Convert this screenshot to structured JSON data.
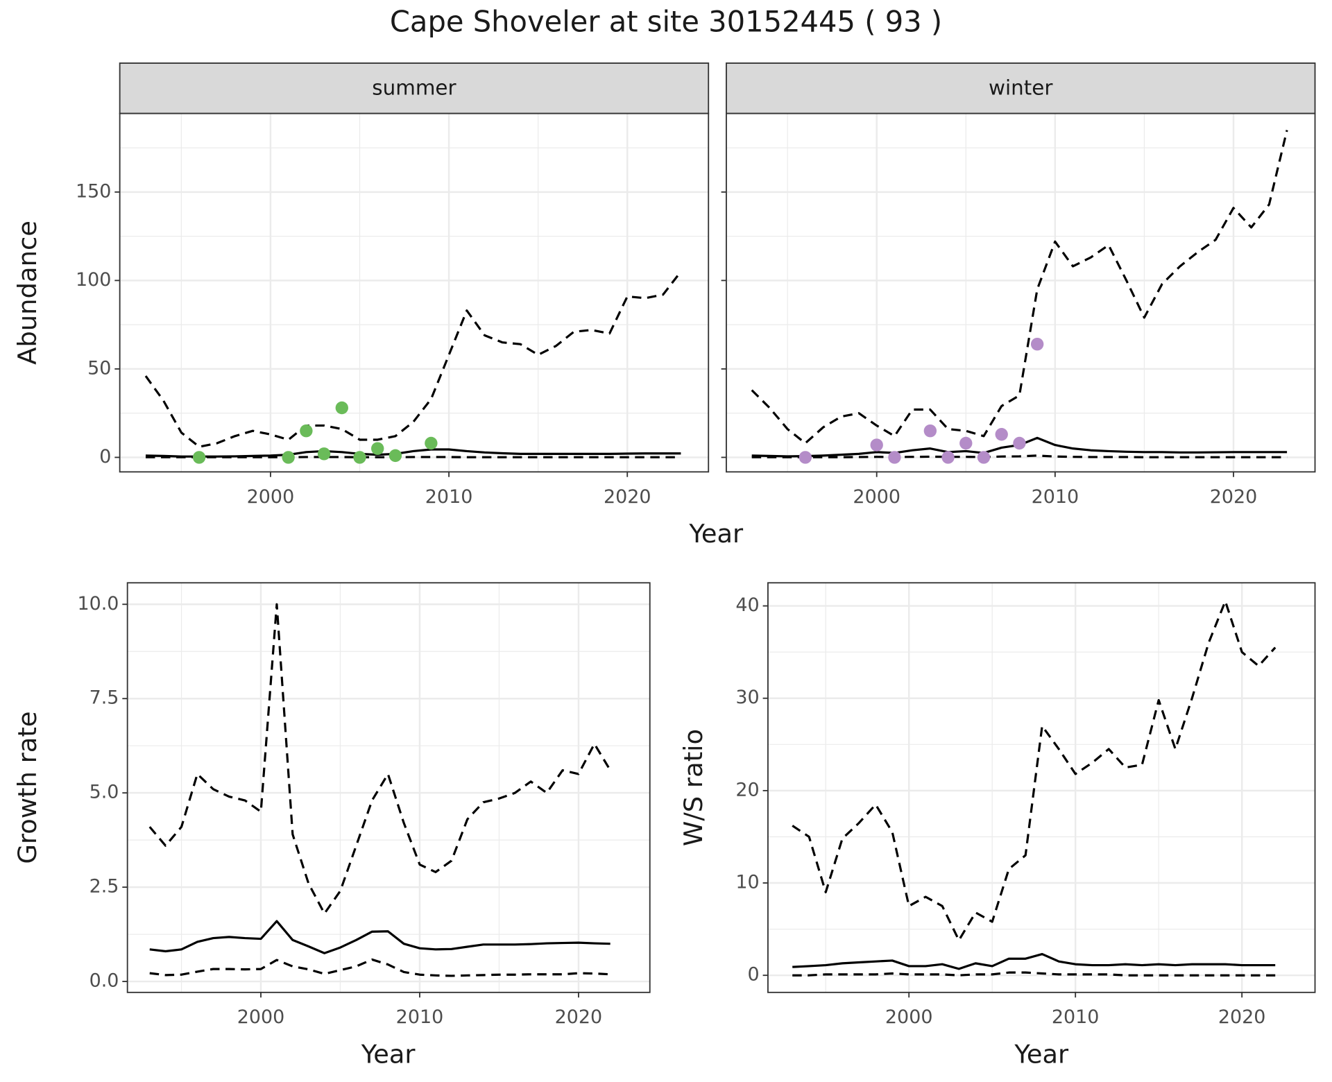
{
  "title": "Cape Shoveler at site 30152445 ( 93 )",
  "chart_data": [
    {
      "type": "line",
      "strip": "summer",
      "xlabel": "Year",
      "ylabel": "Abundance",
      "x": [
        1993,
        1994,
        1995,
        1996,
        1997,
        1998,
        1999,
        2000,
        2001,
        2002,
        2003,
        2004,
        2005,
        2006,
        2007,
        2008,
        2009,
        2010,
        2011,
        2012,
        2013,
        2014,
        2015,
        2016,
        2017,
        2018,
        2019,
        2020,
        2021,
        2022,
        2023
      ],
      "series": [
        {
          "color": "#000000",
          "dash": true,
          "values": [
            46,
            32,
            14,
            6,
            8,
            12,
            15,
            13,
            10,
            18,
            18,
            16,
            10,
            10,
            12,
            20,
            33,
            58,
            83,
            69,
            65,
            64,
            58,
            63,
            71,
            72,
            70,
            91,
            90,
            92,
            105
          ]
        },
        {
          "color": "#000000",
          "dash": false,
          "values": [
            1,
            0.8,
            0.5,
            0.5,
            0.5,
            0.6,
            0.8,
            1,
            1.5,
            3,
            3.5,
            3,
            2,
            1.5,
            2,
            3.5,
            4.5,
            4.5,
            3.5,
            2.8,
            2.3,
            2,
            2,
            2,
            2,
            2,
            2,
            2.1,
            2.2,
            2.2,
            2.2
          ]
        },
        {
          "color": "#000000",
          "dash": true,
          "values": [
            0.1,
            0.1,
            0.1,
            0.1,
            0.1,
            0.1,
            0.1,
            0.1,
            0.1,
            0.2,
            0.2,
            0.2,
            0.1,
            0.1,
            0.1,
            0.2,
            0.2,
            0.2,
            0.1,
            0.1,
            0.1,
            0.1,
            0.1,
            0.1,
            0.1,
            0.1,
            0.1,
            0.1,
            0.1,
            0.1,
            0.1
          ]
        }
      ],
      "points": {
        "color": "#6abb59",
        "x": [
          1996,
          2001,
          2002,
          2003,
          2004,
          2005,
          2006,
          2007,
          2009
        ],
        "values": [
          0,
          0,
          15,
          2,
          28,
          0,
          5,
          1,
          8
        ]
      },
      "xlim": [
        1991.55,
        2024.55
      ],
      "ylim": [
        -8.2,
        194.4
      ],
      "xticks": [
        2000,
        2010,
        2020
      ],
      "yticks": [
        0,
        50,
        100,
        150
      ],
      "minor_xticks": [
        1995,
        2005,
        2015
      ],
      "minor_yticks": [
        25,
        75,
        125,
        175
      ]
    },
    {
      "type": "line",
      "strip": "winter",
      "x": [
        1993,
        1994,
        1995,
        1996,
        1997,
        1998,
        1999,
        2000,
        2001,
        2002,
        2003,
        2004,
        2005,
        2006,
        2007,
        2008,
        2009,
        2010,
        2011,
        2012,
        2013,
        2014,
        2015,
        2016,
        2017,
        2018,
        2019,
        2020,
        2021,
        2022,
        2023
      ],
      "series": [
        {
          "color": "#000000",
          "dash": true,
          "values": [
            38,
            28,
            16,
            8,
            17,
            23,
            25,
            18,
            12,
            27,
            27,
            16,
            15,
            12,
            29,
            35,
            95,
            122,
            108,
            113,
            120,
            100,
            79,
            98,
            108,
            116,
            123,
            141,
            130,
            143,
            185
          ]
        },
        {
          "color": "#000000",
          "dash": false,
          "values": [
            1,
            0.8,
            0.6,
            0.7,
            1,
            1.5,
            2,
            3,
            2.5,
            4,
            5,
            3,
            3.5,
            2.5,
            5.5,
            7,
            11,
            7,
            5,
            4,
            3.5,
            3.2,
            3,
            3,
            2.8,
            2.8,
            2.9,
            3,
            3,
            3,
            3
          ]
        },
        {
          "color": "#000000",
          "dash": true,
          "values": [
            0.1,
            0.1,
            0.1,
            0.1,
            0.1,
            0.1,
            0.2,
            0.3,
            0.2,
            0.3,
            0.4,
            0.3,
            0.3,
            0.2,
            0.5,
            0.6,
            1,
            0.5,
            0.3,
            0.2,
            0.2,
            0.2,
            0.1,
            0.1,
            0.1,
            0.1,
            0.1,
            0.1,
            0.1,
            0.1,
            0.1
          ]
        }
      ],
      "points": {
        "color": "#b48cc8",
        "x": [
          1996,
          2000,
          2001,
          2003,
          2004,
          2005,
          2006,
          2007,
          2008,
          2009
        ],
        "values": [
          0,
          7,
          0,
          15,
          0,
          8,
          0,
          13,
          8,
          64
        ]
      },
      "xlim": [
        1991.57,
        2024.57
      ],
      "ylim": [
        -8.2,
        194.4
      ],
      "xticks": [
        2000,
        2010,
        2020
      ],
      "yticks": [
        0,
        50,
        100,
        150
      ],
      "minor_xticks": [
        1995,
        2005,
        2015
      ],
      "minor_yticks": [
        25,
        75,
        125,
        175
      ]
    },
    {
      "type": "line",
      "xlabel": "Year",
      "ylabel": "Growth rate",
      "x": [
        1993,
        1994,
        1995,
        1996,
        1997,
        1998,
        1999,
        2000,
        2001,
        2002,
        2003,
        2004,
        2005,
        2006,
        2007,
        2008,
        2009,
        2010,
        2011,
        2012,
        2013,
        2014,
        2015,
        2016,
        2017,
        2018,
        2019,
        2020,
        2021,
        2022
      ],
      "series": [
        {
          "color": "#000000",
          "dash": true,
          "values": [
            4.1,
            3.6,
            4.1,
            5.5,
            5.1,
            4.9,
            4.8,
            4.5,
            10,
            3.9,
            2.6,
            1.8,
            2.4,
            3.6,
            4.8,
            5.5,
            4.2,
            3.1,
            2.9,
            3.2,
            4.3,
            4.75,
            4.85,
            5,
            5.3,
            5,
            5.6,
            5.5,
            6.3,
            5.6
          ]
        },
        {
          "color": "#000000",
          "dash": false,
          "values": [
            0.85,
            0.8,
            0.85,
            1.05,
            1.15,
            1.18,
            1.15,
            1.13,
            1.6,
            1.1,
            0.93,
            0.75,
            0.9,
            1.1,
            1.32,
            1.33,
            1,
            0.88,
            0.85,
            0.86,
            0.92,
            0.98,
            0.98,
            0.98,
            0.99,
            1.01,
            1.02,
            1.03,
            1.01,
            1
          ]
        },
        {
          "color": "#000000",
          "dash": true,
          "values": [
            0.22,
            0.17,
            0.18,
            0.26,
            0.33,
            0.33,
            0.32,
            0.33,
            0.57,
            0.4,
            0.32,
            0.2,
            0.3,
            0.4,
            0.58,
            0.45,
            0.25,
            0.18,
            0.16,
            0.15,
            0.16,
            0.17,
            0.18,
            0.18,
            0.19,
            0.19,
            0.19,
            0.22,
            0.21,
            0.19
          ]
        }
      ],
      "xlim": [
        1991.6,
        2024.49
      ],
      "ylim": [
        -0.29,
        10.57
      ],
      "xticks": [
        2000,
        2010,
        2020
      ],
      "yticks": [
        {
          "value": 0,
          "label": "0.0"
        },
        2.5,
        {
          "value": 5,
          "label": "5.0"
        },
        7.5,
        {
          "value": 10,
          "label": "10.0"
        }
      ],
      "minor_xticks": [
        1995,
        2005,
        2015
      ],
      "minor_yticks": [
        1.25,
        3.75,
        6.25,
        8.75
      ]
    },
    {
      "type": "line",
      "xlabel": "Year",
      "ylabel": "W/S ratio",
      "x": [
        1993,
        1994,
        1995,
        1996,
        1997,
        1998,
        1999,
        2000,
        2001,
        2002,
        2003,
        2004,
        2005,
        2006,
        2007,
        2008,
        2009,
        2010,
        2011,
        2012,
        2013,
        2014,
        2015,
        2016,
        2017,
        2018,
        2019,
        2020,
        2021,
        2022
      ],
      "series": [
        {
          "color": "#000000",
          "dash": true,
          "values": [
            16.2,
            15,
            9,
            14.8,
            16.5,
            18.5,
            15.5,
            7.5,
            8.5,
            7.5,
            3.8,
            6.8,
            5.8,
            11.5,
            13,
            27,
            24.5,
            21.8,
            23,
            24.5,
            22.5,
            22.8,
            29.8,
            24.5,
            30,
            36,
            40.5,
            35,
            33.5,
            35.5
          ]
        },
        {
          "color": "#000000",
          "dash": false,
          "values": [
            0.9,
            1,
            1.1,
            1.3,
            1.4,
            1.5,
            1.6,
            1,
            1,
            1.2,
            0.7,
            1.3,
            1,
            1.8,
            1.8,
            2.3,
            1.5,
            1.2,
            1.1,
            1.1,
            1.2,
            1.1,
            1.2,
            1.1,
            1.2,
            1.2,
            1.2,
            1.1,
            1.1,
            1.1
          ]
        },
        {
          "color": "#000000",
          "dash": true,
          "values": [
            0,
            0,
            0.1,
            0.1,
            0.1,
            0.1,
            0.2,
            0.1,
            0.1,
            0.1,
            0,
            0.1,
            0.1,
            0.3,
            0.3,
            0.2,
            0.1,
            0.1,
            0.1,
            0.1,
            0,
            0,
            0,
            0,
            0,
            0,
            0,
            0,
            0,
            0
          ]
        }
      ],
      "xlim": [
        1991.53,
        2024.39
      ],
      "ylim": [
        -1.85,
        42.5
      ],
      "xticks": [
        2000,
        2010,
        2020
      ],
      "yticks": [
        0,
        10,
        20,
        30,
        40
      ],
      "minor_xticks": [
        1995,
        2005,
        2015
      ],
      "minor_yticks": [
        5,
        15,
        25,
        35
      ]
    }
  ]
}
